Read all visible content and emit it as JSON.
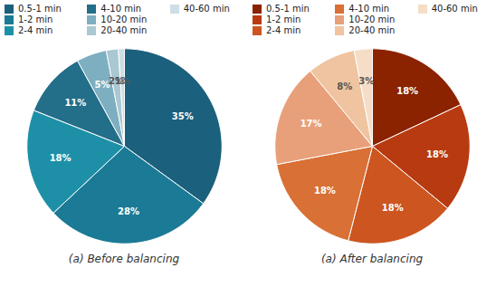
{
  "chart_data": [
    {
      "type": "pie",
      "title": "(a) Before balancing",
      "categories": [
        "0.5-1 min",
        "1-2 min",
        "2-4 min",
        "4-10 min",
        "10-20 min",
        "20-40 min",
        "40-60 min"
      ],
      "values": [
        35,
        28,
        18,
        11,
        5,
        2,
        1
      ],
      "value_labels": [
        "35%",
        "28%",
        "18%",
        "11%",
        "5%",
        "2%",
        "1%"
      ],
      "colors": [
        "#1b607c",
        "#1b7a96",
        "#1d90a8",
        "#236e88",
        "#7dafc0",
        "#a9c8d2",
        "#cddee4"
      ],
      "data_labels": true,
      "legend": "top"
    },
    {
      "type": "pie",
      "title": "(a) After balancing",
      "categories": [
        "0.5-1 min",
        "1-2 min",
        "2-4 min",
        "4-10 min",
        "10-20 min",
        "20-40 min",
        "40-60 min"
      ],
      "values": [
        18,
        18,
        18,
        18,
        17,
        8,
        3
      ],
      "value_labels": [
        "18%",
        "18%",
        "18%",
        "18%",
        "17%",
        "8%",
        "3%"
      ],
      "colors": [
        "#8b2200",
        "#b83a10",
        "#cc5520",
        "#d97035",
        "#e8a07a",
        "#f0c4a0",
        "#f5ddc8"
      ],
      "data_labels": true,
      "legend": "top"
    }
  ]
}
